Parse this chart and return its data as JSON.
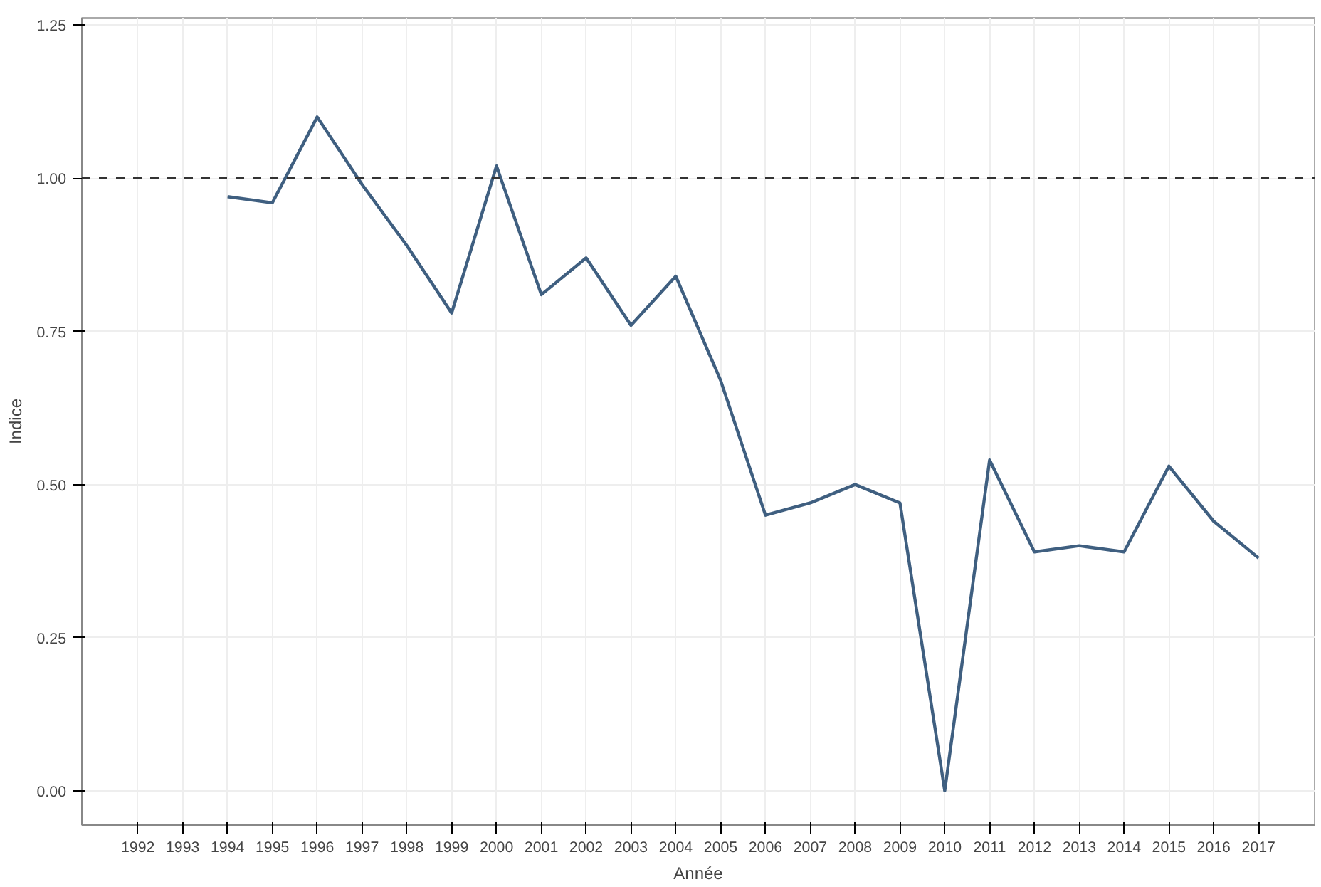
{
  "chart_data": {
    "type": "line",
    "xlabel": "Année",
    "ylabel": "Indice",
    "x": [
      1994,
      1995,
      1996,
      1997,
      1998,
      1999,
      2000,
      2001,
      2002,
      2003,
      2004,
      2005,
      2006,
      2007,
      2008,
      2009,
      2010,
      2011,
      2012,
      2013,
      2014,
      2015,
      2016,
      2017
    ],
    "series": [
      {
        "color": "#3f5f80",
        "values": [
          0.97,
          0.96,
          1.1,
          0.99,
          0.89,
          0.78,
          1.02,
          0.81,
          0.87,
          0.76,
          0.84,
          0.67,
          0.45,
          0.47,
          0.5,
          0.47,
          0.0,
          0.54,
          0.39,
          0.4,
          0.39,
          0.53,
          0.44,
          0.38
        ]
      }
    ],
    "xlim": [
      1990.75,
      2018.25
    ],
    "ylim": [
      -0.056,
      1.262
    ],
    "xticks": [
      1992,
      1993,
      1994,
      1995,
      1996,
      1997,
      1998,
      1999,
      2000,
      2001,
      2002,
      2003,
      2004,
      2005,
      2006,
      2007,
      2008,
      2009,
      2010,
      2011,
      2012,
      2013,
      2014,
      2015,
      2016,
      2017
    ],
    "yticks": [
      {
        "value": 0,
        "label": "0.00"
      },
      {
        "value": 0.25,
        "label": "0.25"
      },
      {
        "value": 0.5,
        "label": "0.50"
      },
      {
        "value": 0.75,
        "label": "0.75"
      },
      {
        "value": 1,
        "label": "1.00"
      },
      {
        "value": 1.25,
        "label": "1.25"
      }
    ],
    "ref_lines": [
      {
        "axis": "y",
        "value": 1,
        "color": "#333333",
        "line_style": "dashed"
      }
    ],
    "grid": true,
    "line_style": "solid"
  }
}
